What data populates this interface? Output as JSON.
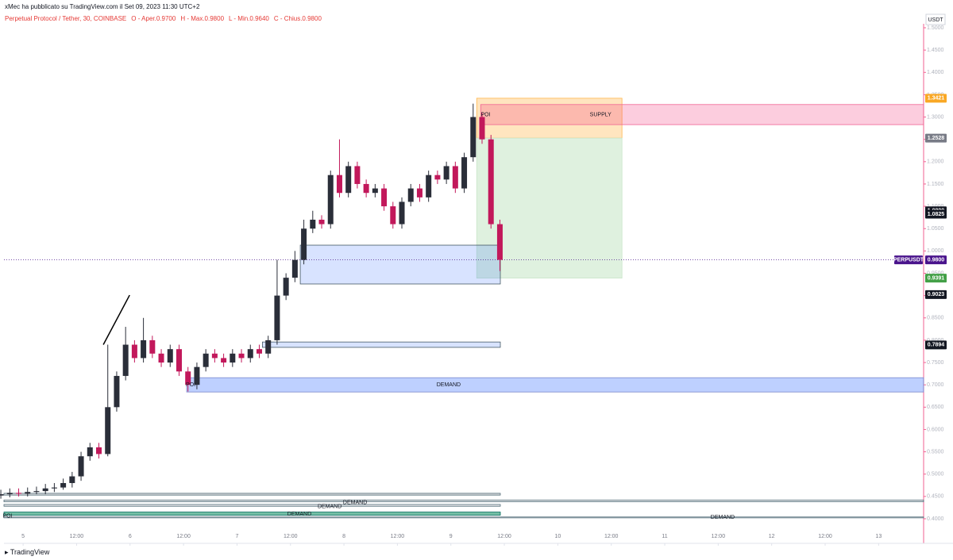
{
  "header": {
    "byline": "xMec ha pubblicato su TradingView.com il Set 09, 2023 11:30 UTC+2",
    "symbol": "Perpetual Protocol / Tether, 30, COINBASE",
    "legend": [
      {
        "label": "O - Aper.",
        "value": "0.9700"
      },
      {
        "label": "H - Max.",
        "value": "0.9800"
      },
      {
        "label": "L - Min.",
        "value": "0.9640"
      },
      {
        "label": "C - Chius.",
        "value": "0.9800"
      }
    ]
  },
  "footer": {
    "brand": "TradingView"
  },
  "chart_data": {
    "type": "candlestick",
    "currency": "USDT",
    "xlim": [
      -4.3,
      202.1
    ],
    "xticks": [
      {
        "value": 0,
        "label": "5"
      },
      {
        "value": 12,
        "label": "12:00"
      },
      {
        "value": 24,
        "label": "6"
      },
      {
        "value": 36,
        "label": "12:00"
      },
      {
        "value": 48,
        "label": "7"
      },
      {
        "value": 60,
        "label": "12:00"
      },
      {
        "value": 72,
        "label": "8"
      },
      {
        "value": 84,
        "label": "12:00"
      },
      {
        "value": 96,
        "label": "9"
      },
      {
        "value": 108,
        "label": "12:00"
      },
      {
        "value": 120,
        "label": "10"
      },
      {
        "value": 132,
        "label": "12:00"
      },
      {
        "value": 144,
        "label": "11"
      },
      {
        "value": 156,
        "label": "12:00"
      },
      {
        "value": 168,
        "label": "12"
      },
      {
        "value": 180,
        "label": "12:00"
      },
      {
        "value": 192,
        "label": "13"
      }
    ],
    "ylim": [
      0.4,
      1.5
    ],
    "yticks": [
      {
        "value": 0.4,
        "label": "0.4000"
      },
      {
        "value": 0.45,
        "label": "0.4500"
      },
      {
        "value": 0.5,
        "label": "0.5000"
      },
      {
        "value": 0.55,
        "label": "0.5500"
      },
      {
        "value": 0.6,
        "label": "0.6000"
      },
      {
        "value": 0.65,
        "label": "0.6500"
      },
      {
        "value": 0.7,
        "label": "0.7000"
      },
      {
        "value": 0.75,
        "label": "0.7500"
      },
      {
        "value": 0.8,
        "label": "0.8000"
      },
      {
        "value": 0.85,
        "label": "0.8500"
      },
      {
        "value": 0.9,
        "label": "0.9000"
      },
      {
        "value": 0.95,
        "label": "0.9500"
      },
      {
        "value": 1.0,
        "label": "1.0000"
      },
      {
        "value": 1.05,
        "label": "1.0500"
      },
      {
        "value": 1.1,
        "label": "1.1000"
      },
      {
        "value": 1.15,
        "label": "1.1500"
      },
      {
        "value": 1.2,
        "label": "1.2000"
      },
      {
        "value": 1.25,
        "label": "1.2500"
      },
      {
        "value": 1.3,
        "label": "1.3000"
      },
      {
        "value": 1.35,
        "label": "1.3500"
      },
      {
        "value": 1.4,
        "label": "1.4000"
      },
      {
        "value": 1.45,
        "label": "1.4500"
      },
      {
        "value": 1.5,
        "label": "1.5000"
      }
    ],
    "up_color": "#2a2e39",
    "down_color": "#c2185b",
    "x": [
      -5,
      -3,
      -1,
      1,
      3,
      5,
      7,
      9,
      11,
      13,
      15,
      17,
      19,
      21,
      23,
      25,
      27,
      29,
      31,
      33,
      35,
      37,
      39,
      41,
      43,
      45,
      47,
      49,
      51,
      53,
      55,
      57,
      59,
      61,
      63,
      65,
      67,
      69,
      71,
      73,
      75,
      77,
      79,
      81,
      83,
      85,
      87,
      89,
      91,
      93,
      95,
      97,
      99,
      101,
      103,
      105,
      107
    ],
    "open": [
      0.452,
      0.455,
      0.458,
      0.456,
      0.46,
      0.462,
      0.468,
      0.47,
      0.48,
      0.495,
      0.54,
      0.56,
      0.545,
      0.65,
      0.72,
      0.79,
      0.76,
      0.8,
      0.77,
      0.75,
      0.78,
      0.73,
      0.7,
      0.74,
      0.77,
      0.76,
      0.75,
      0.77,
      0.76,
      0.78,
      0.77,
      0.8,
      0.9,
      0.94,
      0.98,
      1.05,
      1.07,
      1.06,
      1.17,
      1.13,
      1.19,
      1.15,
      1.13,
      1.14,
      1.1,
      1.06,
      1.11,
      1.14,
      1.12,
      1.17,
      1.16,
      1.19,
      1.14,
      1.21,
      1.3,
      1.25,
      1.06
    ],
    "high": [
      0.465,
      0.468,
      0.468,
      0.47,
      0.472,
      0.478,
      0.48,
      0.49,
      0.505,
      0.55,
      0.57,
      0.57,
      0.79,
      0.73,
      0.83,
      0.8,
      0.85,
      0.81,
      0.78,
      0.79,
      0.79,
      0.74,
      0.75,
      0.78,
      0.78,
      0.77,
      0.78,
      0.78,
      0.79,
      0.79,
      0.81,
      0.98,
      0.95,
      1.0,
      1.07,
      1.09,
      1.08,
      1.18,
      1.25,
      1.2,
      1.2,
      1.16,
      1.15,
      1.15,
      1.11,
      1.12,
      1.15,
      1.15,
      1.18,
      1.18,
      1.2,
      1.2,
      1.22,
      1.33,
      1.31,
      1.26,
      1.07
    ],
    "low": [
      0.445,
      0.448,
      0.45,
      0.45,
      0.455,
      0.455,
      0.46,
      0.465,
      0.47,
      0.485,
      0.53,
      0.535,
      0.54,
      0.64,
      0.71,
      0.75,
      0.75,
      0.76,
      0.74,
      0.74,
      0.72,
      0.685,
      0.69,
      0.73,
      0.75,
      0.74,
      0.74,
      0.75,
      0.75,
      0.76,
      0.76,
      0.79,
      0.89,
      0.93,
      0.97,
      1.04,
      1.05,
      1.05,
      1.12,
      1.12,
      1.14,
      1.12,
      1.12,
      1.09,
      1.05,
      1.05,
      1.1,
      1.11,
      1.11,
      1.15,
      1.15,
      1.13,
      1.13,
      1.2,
      1.24,
      1.05,
      0.955
    ],
    "close": [
      0.455,
      0.458,
      0.456,
      0.46,
      0.462,
      0.468,
      0.47,
      0.48,
      0.495,
      0.54,
      0.56,
      0.545,
      0.65,
      0.72,
      0.79,
      0.76,
      0.8,
      0.77,
      0.75,
      0.78,
      0.73,
      0.7,
      0.74,
      0.77,
      0.76,
      0.75,
      0.77,
      0.76,
      0.78,
      0.77,
      0.8,
      0.9,
      0.94,
      0.98,
      1.05,
      1.07,
      1.06,
      1.17,
      1.13,
      1.19,
      1.15,
      1.13,
      1.14,
      1.1,
      1.06,
      1.11,
      1.14,
      1.12,
      1.17,
      1.16,
      1.19,
      1.14,
      1.21,
      1.3,
      1.25,
      1.06,
      0.98
    ],
    "zones": [
      {
        "x0": 101.8,
        "x1": 134.4,
        "y0": 1.2528,
        "y1": 1.3421,
        "fill": "rgba(255,152,0,0.25)",
        "stroke": "#ffb74d"
      },
      {
        "x0": 102.7,
        "x1": 202.1,
        "y0": 1.283,
        "y1": 1.328,
        "fill": "rgba(242,54,124,0.25)",
        "stroke": "#f06292"
      },
      {
        "x0": 101.8,
        "x1": 134.4,
        "y0": 0.9391,
        "y1": 1.2528,
        "fill": "rgba(76,175,80,0.18)",
        "stroke": "#c8e6c9"
      },
      {
        "x0": 62.2,
        "x1": 107.1,
        "y0": 0.926,
        "y1": 1.013,
        "fill": "rgba(41,98,255,0.18)",
        "stroke": "#455a64"
      },
      {
        "x0": 53.7,
        "x1": 107.1,
        "y0": 0.784,
        "y1": 0.796,
        "fill": "rgba(41,98,255,0.18)",
        "stroke": "#455a64"
      },
      {
        "x0": 36.7,
        "x1": 202.1,
        "y0": 0.684,
        "y1": 0.716,
        "fill": "rgba(41,98,255,0.3)",
        "stroke": "#7986cb"
      },
      {
        "x0": -4.3,
        "x1": 107.1,
        "y0": 0.453,
        "y1": 0.457,
        "fill": "rgba(120,123,134,0.3)",
        "stroke": "#546e7a"
      },
      {
        "x0": -4.3,
        "x1": 202.1,
        "y0": 0.438,
        "y1": 0.442,
        "fill": "rgba(120,123,134,0.2)",
        "stroke": "#546e7a"
      },
      {
        "x0": -4.3,
        "x1": 107.1,
        "y0": 0.428,
        "y1": 0.432,
        "fill": "rgba(120,123,134,0.2)",
        "stroke": "#546e7a"
      },
      {
        "x0": -4.3,
        "x1": 107.1,
        "y0": 0.408,
        "y1": 0.415,
        "fill": "rgba(0,137,90,0.55)",
        "stroke": "#00695c"
      },
      {
        "x0": -4.3,
        "x1": 202.1,
        "y0": 0.402,
        "y1": 0.404,
        "fill": "rgba(120,123,134,0.2)",
        "stroke": "#546e7a"
      }
    ],
    "labels": [
      {
        "text": "SUPPLY",
        "x": 129.6,
        "y": 1.305
      },
      {
        "text": "POI",
        "x": 103.8,
        "y": 1.305
      },
      {
        "text": "POI",
        "x": 37.6,
        "y": 0.7
      },
      {
        "text": "DEMAND",
        "x": 95.5,
        "y": 0.7
      },
      {
        "text": "DEMAND",
        "x": 74.5,
        "y": 0.436
      },
      {
        "text": "DEMAND",
        "x": 68.8,
        "y": 0.427
      },
      {
        "text": "DEMAND",
        "x": 62,
        "y": 0.41
      },
      {
        "text": "POI",
        "x": -3.5,
        "y": 0.406
      },
      {
        "text": "DEMAND",
        "x": 157,
        "y": 0.403
      }
    ],
    "trend_line": {
      "x": [
        18,
        23.9
      ],
      "y": [
        0.79,
        0.901
      ]
    },
    "last_price": {
      "tag": "PERPUSDT",
      "value": 0.98,
      "label": "0.9800",
      "color": "#4a148c"
    },
    "price_labels": [
      {
        "value": 1.3421,
        "color": "#f9a825"
      },
      {
        "value": 1.2528,
        "color": "#787b86"
      },
      {
        "value": 1.0899,
        "color": "#131722"
      },
      {
        "value": 1.0825,
        "color": "#131722"
      },
      {
        "value": 0.9391,
        "color": "#43a047"
      },
      {
        "value": 0.9023,
        "color": "#131722"
      },
      {
        "value": 0.7894,
        "color": "#131722"
      }
    ]
  }
}
